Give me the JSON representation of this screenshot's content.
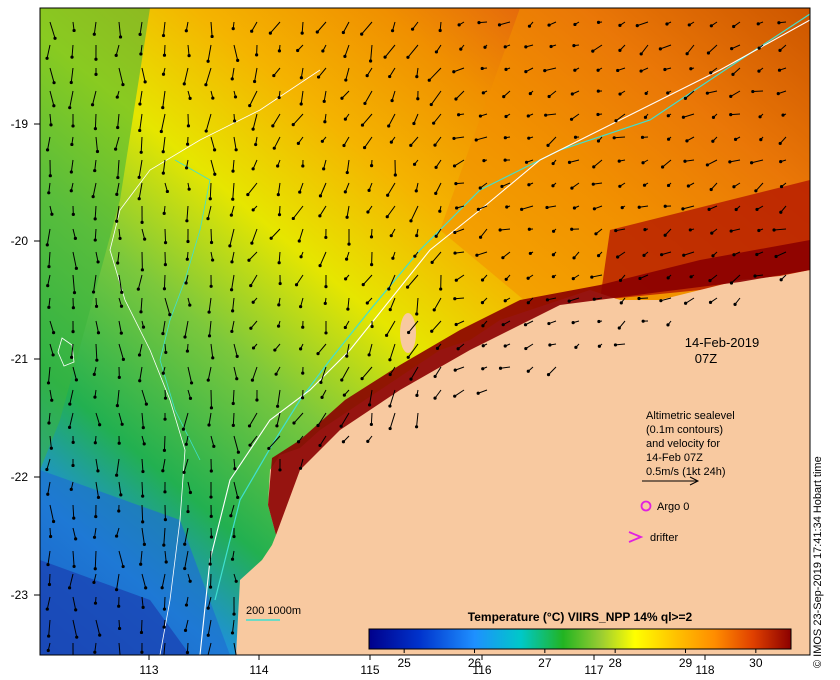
{
  "map": {
    "date_label": "14-Feb-2019",
    "time_label": "07Z",
    "legend_lines": [
      "Altimetric sealevel",
      "(0.1m contours)",
      "and velocity for",
      "14-Feb 07Z",
      "0.5m/s (1kt 24h)"
    ],
    "argo_label": "Argo 0",
    "drifter_label": "drifter",
    "bathymetry_label": "200  1000m",
    "colorbar": {
      "title": "Temperature (°C) VIIRS_NPP 14% ql>=2",
      "ticks": [
        "25",
        "26",
        "27",
        "28",
        "29",
        "30"
      ],
      "range": [
        24.5,
        30.5
      ]
    },
    "x_ticks": [
      "113",
      "114",
      "115",
      "116",
      "117",
      "118"
    ],
    "y_ticks": [
      "-19",
      "-20",
      "-21",
      "-22",
      "-23"
    ],
    "credit": "© IMOS 23-Sep-2019 17:41:34 Hobart time",
    "colors": {
      "land": "#f8c9a0",
      "cold": "#1a3fb0",
      "warm": "#8b0000",
      "contour_200": "#40e0d0",
      "contour_1000": "#ffffff",
      "argo": "#e020e0",
      "drifter": "#e020e0"
    }
  }
}
